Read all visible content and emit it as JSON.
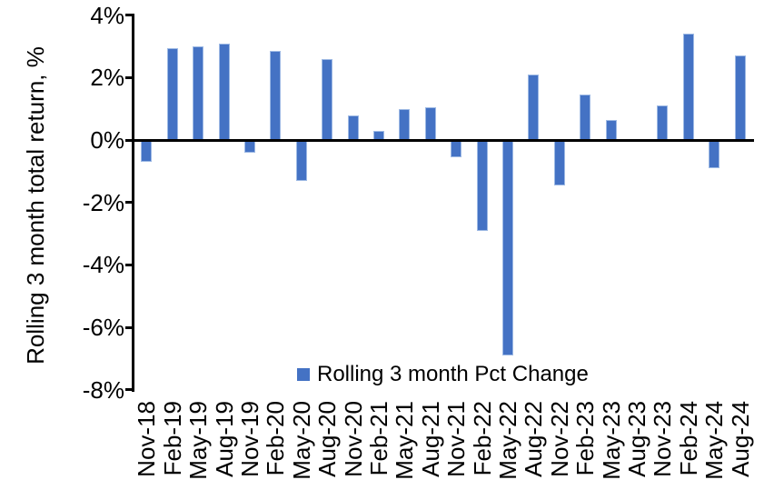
{
  "chart_data": {
    "type": "bar",
    "title": "",
    "xlabel": "",
    "ylabel": "Rolling 3 month total return, %",
    "categories": [
      "Nov-18",
      "Feb-19",
      "May-19",
      "Aug-19",
      "Nov-19",
      "Feb-20",
      "May-20",
      "Aug-20",
      "Nov-20",
      "Feb-21",
      "May-21",
      "Aug-21",
      "Nov-21",
      "Feb-22",
      "May-22",
      "Aug-22",
      "Nov-22",
      "Feb-23",
      "May-23",
      "Aug-23",
      "Nov-23",
      "Feb-24",
      "May-24",
      "Aug-24"
    ],
    "series": [
      {
        "name": "Rolling 3 month Pct Change",
        "values": [
          -0.7,
          2.95,
          3.0,
          3.1,
          -0.4,
          2.85,
          -1.3,
          2.6,
          0.8,
          0.3,
          1.0,
          1.05,
          -0.55,
          -2.9,
          -6.9,
          2.1,
          -1.45,
          1.45,
          0.65,
          0.0,
          1.1,
          3.4,
          -0.9,
          2.7
        ]
      }
    ],
    "ylim": [
      -8,
      4
    ],
    "yticks": [
      4,
      2,
      0,
      -2,
      -4,
      -6,
      -8
    ],
    "ytick_suffix": "%",
    "grid": false,
    "legend_position": "bottom",
    "bar_color": "#4472C4",
    "axis_color": "#000000"
  }
}
